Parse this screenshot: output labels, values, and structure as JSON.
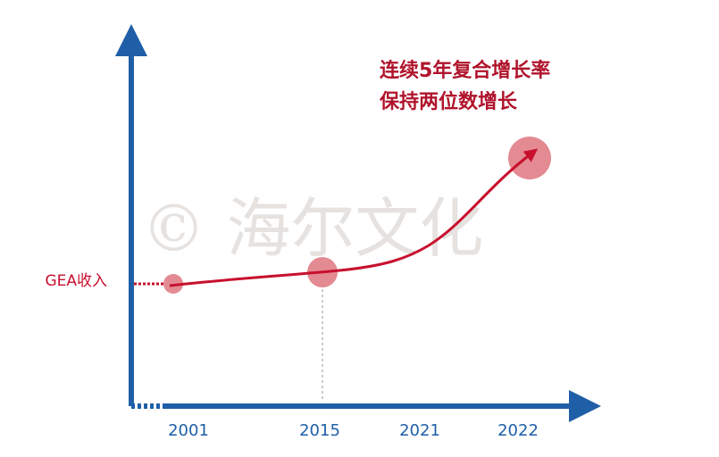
{
  "y_axis_label": "GEA收入",
  "x_labels": [
    "2001",
    "2015",
    "2021",
    "2022"
  ],
  "annotation": [
    "连续5年复合增长率",
    "保持两位数增长"
  ],
  "watermark": "© 海尔文化"
}
